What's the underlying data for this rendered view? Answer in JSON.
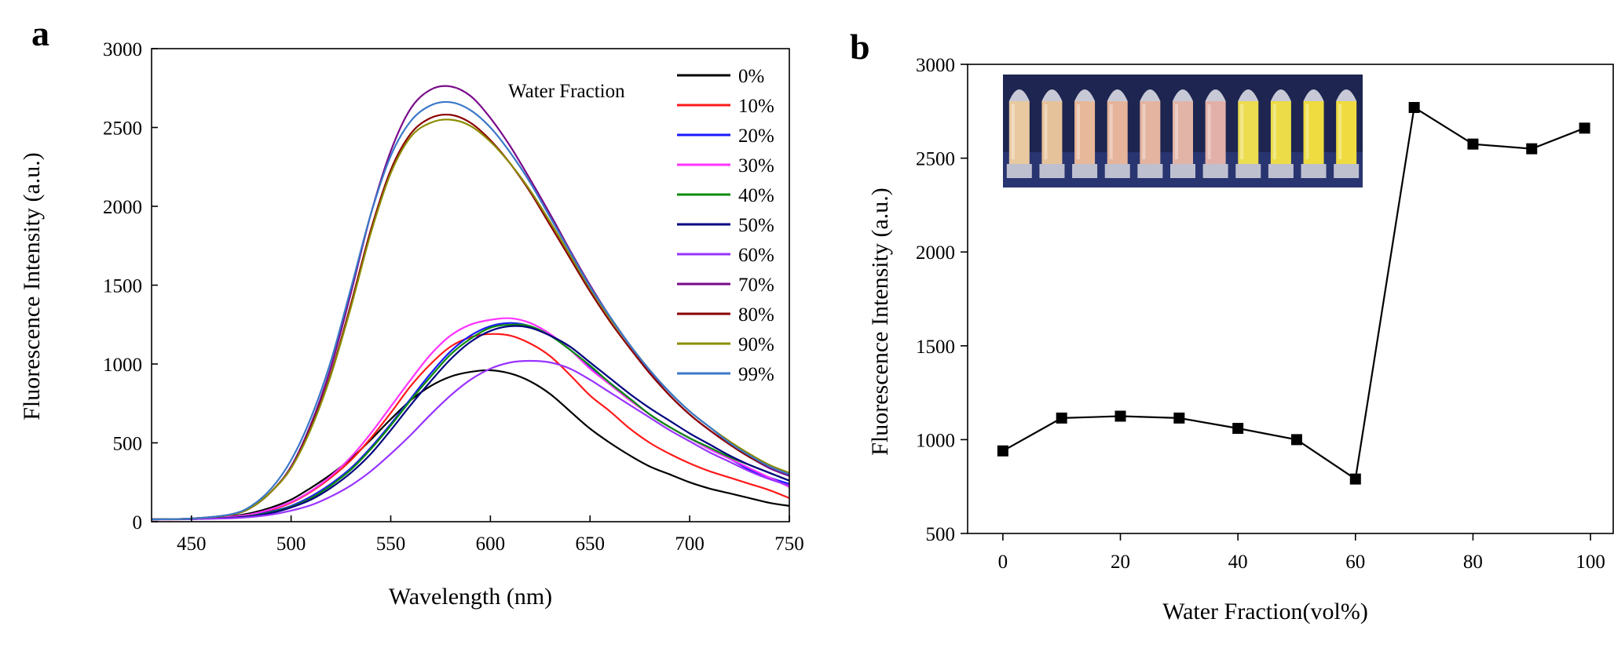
{
  "chart_data": [
    {
      "panel_label": "a",
      "type": "line",
      "xlabel": "Wavelength (nm)",
      "ylabel": "Fluorescence Intensity (a.u.)",
      "xlim": [
        430,
        750
      ],
      "ylim": [
        0,
        3000
      ],
      "xticks": [
        450,
        500,
        550,
        600,
        650,
        700,
        750
      ],
      "yticks": [
        0,
        500,
        1000,
        1500,
        2000,
        2500,
        3000
      ],
      "legend_title": "Water Fraction",
      "legend_position": "top-right",
      "x": [
        430,
        450,
        470,
        480,
        490,
        500,
        510,
        520,
        530,
        540,
        550,
        560,
        570,
        580,
        590,
        600,
        610,
        620,
        630,
        640,
        650,
        660,
        670,
        680,
        690,
        700,
        710,
        720,
        730,
        740,
        750
      ],
      "series": [
        {
          "name": "0%",
          "color": "#000000",
          "values": [
            15,
            18,
            35,
            55,
            90,
            140,
            215,
            300,
            400,
            520,
            650,
            770,
            860,
            920,
            950,
            960,
            940,
            890,
            810,
            700,
            590,
            500,
            420,
            350,
            300,
            250,
            210,
            180,
            150,
            120,
            100
          ]
        },
        {
          "name": "10%",
          "color": "#ff1a1a",
          "values": [
            15,
            17,
            30,
            45,
            75,
            120,
            190,
            280,
            390,
            530,
            690,
            860,
            1000,
            1110,
            1170,
            1190,
            1180,
            1130,
            1050,
            930,
            800,
            700,
            590,
            500,
            430,
            370,
            320,
            280,
            240,
            200,
            150
          ]
        },
        {
          "name": "20%",
          "color": "#1a1aff",
          "values": [
            15,
            17,
            28,
            40,
            65,
            100,
            160,
            240,
            340,
            470,
            620,
            780,
            940,
            1080,
            1180,
            1240,
            1260,
            1240,
            1180,
            1090,
            980,
            880,
            780,
            680,
            600,
            530,
            460,
            400,
            330,
            280,
            240
          ]
        },
        {
          "name": "30%",
          "color": "#ff33ff",
          "values": [
            15,
            17,
            32,
            48,
            80,
            125,
            195,
            290,
            410,
            560,
            730,
            900,
            1060,
            1180,
            1250,
            1280,
            1290,
            1260,
            1190,
            1090,
            970,
            870,
            770,
            680,
            600,
            530,
            460,
            400,
            340,
            280,
            220
          ]
        },
        {
          "name": "40%",
          "color": "#0d8c0d",
          "values": [
            15,
            17,
            26,
            38,
            60,
            95,
            150,
            230,
            330,
            460,
            610,
            770,
            920,
            1060,
            1160,
            1230,
            1250,
            1240,
            1180,
            1090,
            990,
            880,
            780,
            680,
            600,
            530,
            470,
            410,
            360,
            310,
            260
          ]
        },
        {
          "name": "50%",
          "color": "#000080",
          "values": [
            15,
            17,
            25,
            35,
            55,
            90,
            140,
            215,
            310,
            430,
            580,
            740,
            890,
            1030,
            1140,
            1210,
            1240,
            1230,
            1180,
            1110,
            1010,
            910,
            810,
            720,
            640,
            560,
            490,
            420,
            360,
            310,
            260
          ]
        },
        {
          "name": "60%",
          "color": "#9933ff",
          "values": [
            15,
            16,
            22,
            30,
            45,
            70,
            105,
            160,
            230,
            320,
            430,
            550,
            680,
            800,
            900,
            970,
            1010,
            1020,
            1010,
            970,
            900,
            820,
            740,
            660,
            580,
            510,
            440,
            380,
            320,
            270,
            230
          ]
        },
        {
          "name": "70%",
          "color": "#7a0a8a",
          "values": [
            15,
            20,
            45,
            90,
            190,
            350,
            620,
            980,
            1450,
            1950,
            2350,
            2620,
            2740,
            2760,
            2700,
            2560,
            2380,
            2170,
            1950,
            1720,
            1500,
            1300,
            1120,
            950,
            800,
            680,
            580,
            490,
            410,
            340,
            290
          ]
        },
        {
          "name": "80%",
          "color": "#8b0000",
          "values": [
            15,
            20,
            45,
            90,
            190,
            340,
            600,
            940,
            1380,
            1850,
            2230,
            2460,
            2560,
            2580,
            2530,
            2420,
            2270,
            2090,
            1880,
            1670,
            1460,
            1270,
            1100,
            940,
            800,
            680,
            580,
            490,
            410,
            350,
            300
          ]
        },
        {
          "name": "90%",
          "color": "#8c8c00",
          "values": [
            15,
            20,
            45,
            90,
            190,
            340,
            590,
            930,
            1360,
            1830,
            2210,
            2440,
            2530,
            2550,
            2510,
            2410,
            2270,
            2100,
            1900,
            1690,
            1480,
            1290,
            1120,
            960,
            820,
            700,
            600,
            510,
            430,
            360,
            310
          ]
        },
        {
          "name": "99%",
          "color": "#3a78c8",
          "values": [
            15,
            20,
            48,
            100,
            210,
            390,
            660,
            1020,
            1480,
            1950,
            2320,
            2540,
            2640,
            2660,
            2610,
            2500,
            2340,
            2150,
            1930,
            1710,
            1490,
            1300,
            1120,
            960,
            820,
            700,
            600,
            500,
            420,
            350,
            300
          ]
        }
      ]
    },
    {
      "panel_label": "b",
      "type": "line",
      "marker": "square",
      "xlabel": "Water Fraction(vol%)",
      "ylabel": "Fluorescence Intensity (a.u.)",
      "xlim": [
        -6,
        104
      ],
      "ylim": [
        500,
        3000
      ],
      "xticks": [
        0,
        20,
        40,
        60,
        80,
        100
      ],
      "yticks": [
        500,
        1000,
        1500,
        2000,
        2500,
        3000
      ],
      "series": [
        {
          "name": "",
          "color": "#000000",
          "x": [
            0,
            10,
            20,
            30,
            40,
            50,
            60,
            70,
            80,
            90,
            99
          ],
          "values": [
            940,
            1115,
            1125,
            1115,
            1060,
            1000,
            790,
            2770,
            2575,
            2550,
            2660
          ]
        }
      ],
      "inset": {
        "description_icon": "vial-photo-inset",
        "vial_colors": [
          "#e8c9a0",
          "#e6c29a",
          "#e8b89a",
          "#e6b49a",
          "#e4b4a0",
          "#e2b4a8",
          "#e2b0a8",
          "#ecdc50",
          "#ecdc48",
          "#eedc40",
          "#f0dc40"
        ]
      }
    }
  ]
}
